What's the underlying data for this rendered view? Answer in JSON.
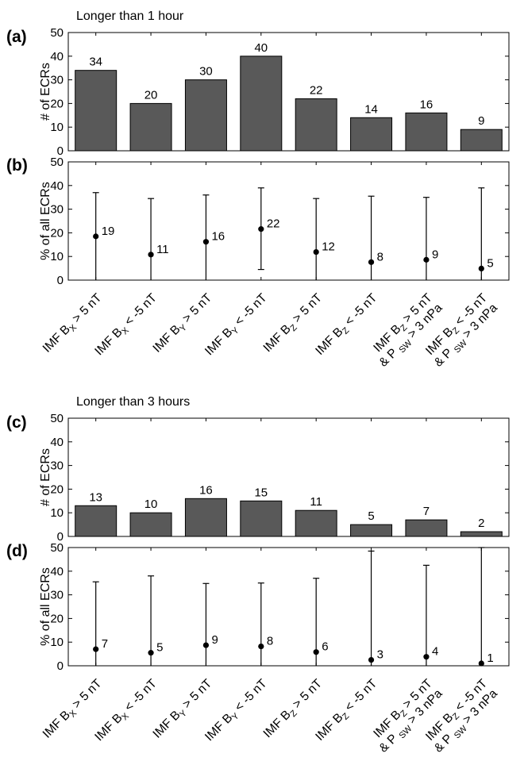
{
  "figure": {
    "section1_title": "Longer than 1 hour",
    "section2_title": "Longer than 3 hours"
  },
  "category_labels": [
    {
      "l1": [
        [
          "IMF B",
          ""
        ],
        [
          "X",
          "sub"
        ],
        [
          " > 5 nT",
          ""
        ]
      ],
      "l2": []
    },
    {
      "l1": [
        [
          "IMF B",
          ""
        ],
        [
          "X",
          "sub"
        ],
        [
          " < -5 nT",
          ""
        ]
      ],
      "l2": []
    },
    {
      "l1": [
        [
          "IMF B",
          ""
        ],
        [
          "Y",
          "sub"
        ],
        [
          " > 5 nT",
          ""
        ]
      ],
      "l2": []
    },
    {
      "l1": [
        [
          "IMF B",
          ""
        ],
        [
          "Y",
          "sub"
        ],
        [
          " < -5 nT",
          ""
        ]
      ],
      "l2": []
    },
    {
      "l1": [
        [
          "IMF B",
          ""
        ],
        [
          "Z",
          "sub"
        ],
        [
          " > 5 nT",
          ""
        ]
      ],
      "l2": []
    },
    {
      "l1": [
        [
          "IMF B",
          ""
        ],
        [
          "Z",
          "sub"
        ],
        [
          " < -5 nT",
          ""
        ]
      ],
      "l2": []
    },
    {
      "l1": [
        [
          "IMF B",
          ""
        ],
        [
          "Z",
          "sub"
        ],
        [
          " > 5 nT",
          ""
        ]
      ],
      "l2": [
        [
          "& P ",
          ""
        ],
        [
          "SW",
          "sub"
        ],
        [
          " > 3 nPa",
          ""
        ]
      ]
    },
    {
      "l1": [
        [
          "IMF B",
          ""
        ],
        [
          "Z",
          "sub"
        ],
        [
          " < -5 nT",
          ""
        ]
      ],
      "l2": [
        [
          "& P ",
          ""
        ],
        [
          "SW",
          "sub"
        ],
        [
          " > 3 nPa",
          ""
        ]
      ]
    }
  ],
  "chart_data": [
    {
      "panel": "(a)",
      "type": "bar",
      "ylabel": "# of ECRs",
      "ylim": [
        0,
        50
      ],
      "yticks": [
        0,
        10,
        20,
        30,
        40,
        50
      ],
      "values": [
        34,
        20,
        30,
        40,
        22,
        14,
        16,
        9
      ],
      "labels": [
        "34",
        "20",
        "30",
        "40",
        "22",
        "14",
        "16",
        "9"
      ],
      "color": "#595959"
    },
    {
      "panel": "(b)",
      "type": "scatter",
      "ylabel": "% of all ECRs",
      "ylim": [
        0,
        50
      ],
      "yticks": [
        0,
        10,
        20,
        30,
        40,
        50
      ],
      "values": [
        18.5,
        10.8,
        16.2,
        21.6,
        11.9,
        7.6,
        8.6,
        4.9
      ],
      "labels": [
        "19",
        "11",
        "16",
        "22",
        "12",
        "8",
        "9",
        "5"
      ],
      "err_low": [
        0,
        0,
        0,
        4.5,
        0,
        0,
        0,
        0
      ],
      "err_high": [
        37,
        34.5,
        36,
        39,
        34.5,
        35.5,
        35,
        39
      ],
      "color": "#000000"
    },
    {
      "panel": "(c)",
      "type": "bar",
      "ylabel": "# of ECRs",
      "ylim": [
        0,
        50
      ],
      "yticks": [
        0,
        10,
        20,
        30,
        40,
        50
      ],
      "values": [
        13,
        10,
        16,
        15,
        11,
        5,
        7,
        2
      ],
      "labels": [
        "13",
        "10",
        "16",
        "15",
        "11",
        "5",
        "7",
        "2"
      ],
      "color": "#595959"
    },
    {
      "panel": "(d)",
      "type": "scatter",
      "ylabel": "% of all ECRs",
      "ylim": [
        0,
        50
      ],
      "yticks": [
        0,
        10,
        20,
        30,
        40,
        50
      ],
      "values": [
        7,
        5.5,
        8.7,
        8.2,
        5.8,
        2.5,
        3.8,
        1
      ],
      "labels": [
        "7",
        "5",
        "9",
        "8",
        "6",
        "3",
        "4",
        "1"
      ],
      "err_low": [
        0,
        0,
        0,
        0,
        0,
        0,
        0,
        0
      ],
      "err_high": [
        35.5,
        38,
        34.8,
        35,
        37,
        48.5,
        42.5,
        50
      ],
      "color": "#000000"
    }
  ]
}
